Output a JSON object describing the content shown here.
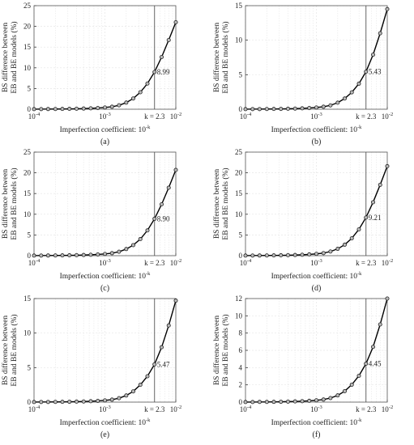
{
  "figure": {
    "common": {
      "ylabel_line1": "BS difference between",
      "ylabel_line2": "EB and BE models (%)",
      "xlabel_prefix": "Imperfection coefficient: 10",
      "xlabel_exp": "-k",
      "k_label": "k = 2.3",
      "k_value": 2.3,
      "x_tick_exponents": [
        "-4",
        "-3",
        "-2"
      ],
      "x_tick_values": [
        -4,
        -3,
        -2
      ],
      "colors": {
        "line": "#000000",
        "marker_edge": "#222222",
        "marker_fill": "#bbbbbb",
        "grid": "#e6e6e6",
        "vline": "#555555"
      }
    },
    "panels": [
      {
        "label": "(a)",
        "annotation": "8.99"
      },
      {
        "label": "(b)",
        "annotation": "5.43"
      },
      {
        "label": "(c)",
        "annotation": "8.90"
      },
      {
        "label": "(d)",
        "annotation": "9.21"
      },
      {
        "label": "(e)",
        "annotation": "5.47"
      },
      {
        "label": "(f)",
        "annotation": "4.45"
      }
    ]
  },
  "chart_data": [
    {
      "type": "line",
      "x_scale": "log",
      "xlim": [
        0.0001,
        0.01
      ],
      "ylim": [
        0,
        25
      ],
      "yticks": [
        0,
        5,
        10,
        15,
        20,
        25
      ],
      "grid": true,
      "x": [
        0.0001,
        0.000126,
        0.000158,
        0.0002,
        0.000251,
        0.000316,
        0.000398,
        0.000501,
        0.000631,
        0.000794,
        0.001,
        0.00126,
        0.00158,
        0.002,
        0.00251,
        0.00316,
        0.00398,
        0.00501,
        0.00631,
        0.00794,
        0.01
      ],
      "y": [
        0.02,
        0.03,
        0.04,
        0.05,
        0.07,
        0.09,
        0.12,
        0.16,
        0.22,
        0.3,
        0.42,
        0.6,
        0.95,
        1.6,
        2.6,
        4.1,
        6.2,
        8.99,
        12.6,
        16.7,
        21
      ]
    },
    {
      "type": "line",
      "x_scale": "log",
      "xlim": [
        0.0001,
        0.01
      ],
      "ylim": [
        0,
        15
      ],
      "yticks": [
        0,
        5,
        10,
        15
      ],
      "grid": true,
      "x": [
        0.0001,
        0.000126,
        0.000158,
        0.0002,
        0.000251,
        0.000316,
        0.000398,
        0.000501,
        0.000631,
        0.000794,
        0.001,
        0.00126,
        0.00158,
        0.002,
        0.00251,
        0.00316,
        0.00398,
        0.00501,
        0.00631,
        0.00794,
        0.01
      ],
      "y": [
        0.01,
        0.02,
        0.02,
        0.03,
        0.04,
        0.05,
        0.07,
        0.09,
        0.13,
        0.18,
        0.25,
        0.36,
        0.56,
        0.95,
        1.55,
        2.45,
        3.7,
        5.43,
        7.9,
        11,
        14.5
      ]
    },
    {
      "type": "line",
      "x_scale": "log",
      "xlim": [
        0.0001,
        0.01
      ],
      "ylim": [
        0,
        25
      ],
      "yticks": [
        0,
        5,
        10,
        15,
        20,
        25
      ],
      "grid": true,
      "x": [
        0.0001,
        0.000126,
        0.000158,
        0.0002,
        0.000251,
        0.000316,
        0.000398,
        0.000501,
        0.000631,
        0.000794,
        0.001,
        0.00126,
        0.00158,
        0.002,
        0.00251,
        0.00316,
        0.00398,
        0.00501,
        0.00631,
        0.00794,
        0.01
      ],
      "y": [
        0.02,
        0.03,
        0.04,
        0.05,
        0.07,
        0.09,
        0.12,
        0.16,
        0.22,
        0.3,
        0.42,
        0.6,
        0.95,
        1.6,
        2.55,
        4.0,
        6.1,
        8.9,
        12.4,
        16.4,
        20.7
      ]
    },
    {
      "type": "line",
      "x_scale": "log",
      "xlim": [
        0.0001,
        0.01
      ],
      "ylim": [
        0,
        25
      ],
      "yticks": [
        0,
        5,
        10,
        15,
        20,
        25
      ],
      "grid": true,
      "x": [
        0.0001,
        0.000126,
        0.000158,
        0.0002,
        0.000251,
        0.000316,
        0.000398,
        0.000501,
        0.000631,
        0.000794,
        0.001,
        0.00126,
        0.00158,
        0.002,
        0.00251,
        0.00316,
        0.00398,
        0.00501,
        0.00631,
        0.00794,
        0.01
      ],
      "y": [
        0.02,
        0.03,
        0.04,
        0.05,
        0.07,
        0.09,
        0.12,
        0.16,
        0.22,
        0.31,
        0.44,
        0.62,
        1.0,
        1.65,
        2.65,
        4.2,
        6.35,
        9.21,
        12.9,
        17.1,
        21.6
      ]
    },
    {
      "type": "line",
      "x_scale": "log",
      "xlim": [
        0.0001,
        0.01
      ],
      "ylim": [
        0,
        15
      ],
      "yticks": [
        0,
        5,
        10,
        15
      ],
      "grid": true,
      "x": [
        0.0001,
        0.000126,
        0.000158,
        0.0002,
        0.000251,
        0.000316,
        0.000398,
        0.000501,
        0.000631,
        0.000794,
        0.001,
        0.00126,
        0.00158,
        0.002,
        0.00251,
        0.00316,
        0.00398,
        0.00501,
        0.00631,
        0.00794,
        0.01
      ],
      "y": [
        0.01,
        0.02,
        0.02,
        0.03,
        0.04,
        0.05,
        0.07,
        0.09,
        0.13,
        0.18,
        0.25,
        0.36,
        0.57,
        0.96,
        1.56,
        2.5,
        3.75,
        5.47,
        7.95,
        11.1,
        14.7
      ]
    },
    {
      "type": "line",
      "x_scale": "log",
      "xlim": [
        0.0001,
        0.01
      ],
      "ylim": [
        0,
        12
      ],
      "yticks": [
        0,
        2,
        4,
        6,
        8,
        10,
        12
      ],
      "grid": true,
      "x": [
        0.0001,
        0.000126,
        0.000158,
        0.0002,
        0.000251,
        0.000316,
        0.000398,
        0.000501,
        0.000631,
        0.000794,
        0.001,
        0.00126,
        0.00158,
        0.002,
        0.00251,
        0.00316,
        0.00398,
        0.00501,
        0.00631,
        0.00794,
        0.01
      ],
      "y": [
        0.01,
        0.01,
        0.02,
        0.02,
        0.03,
        0.04,
        0.06,
        0.08,
        0.11,
        0.15,
        0.21,
        0.3,
        0.47,
        0.78,
        1.27,
        2.02,
        3.05,
        4.45,
        6.4,
        9.0,
        12
      ]
    }
  ]
}
